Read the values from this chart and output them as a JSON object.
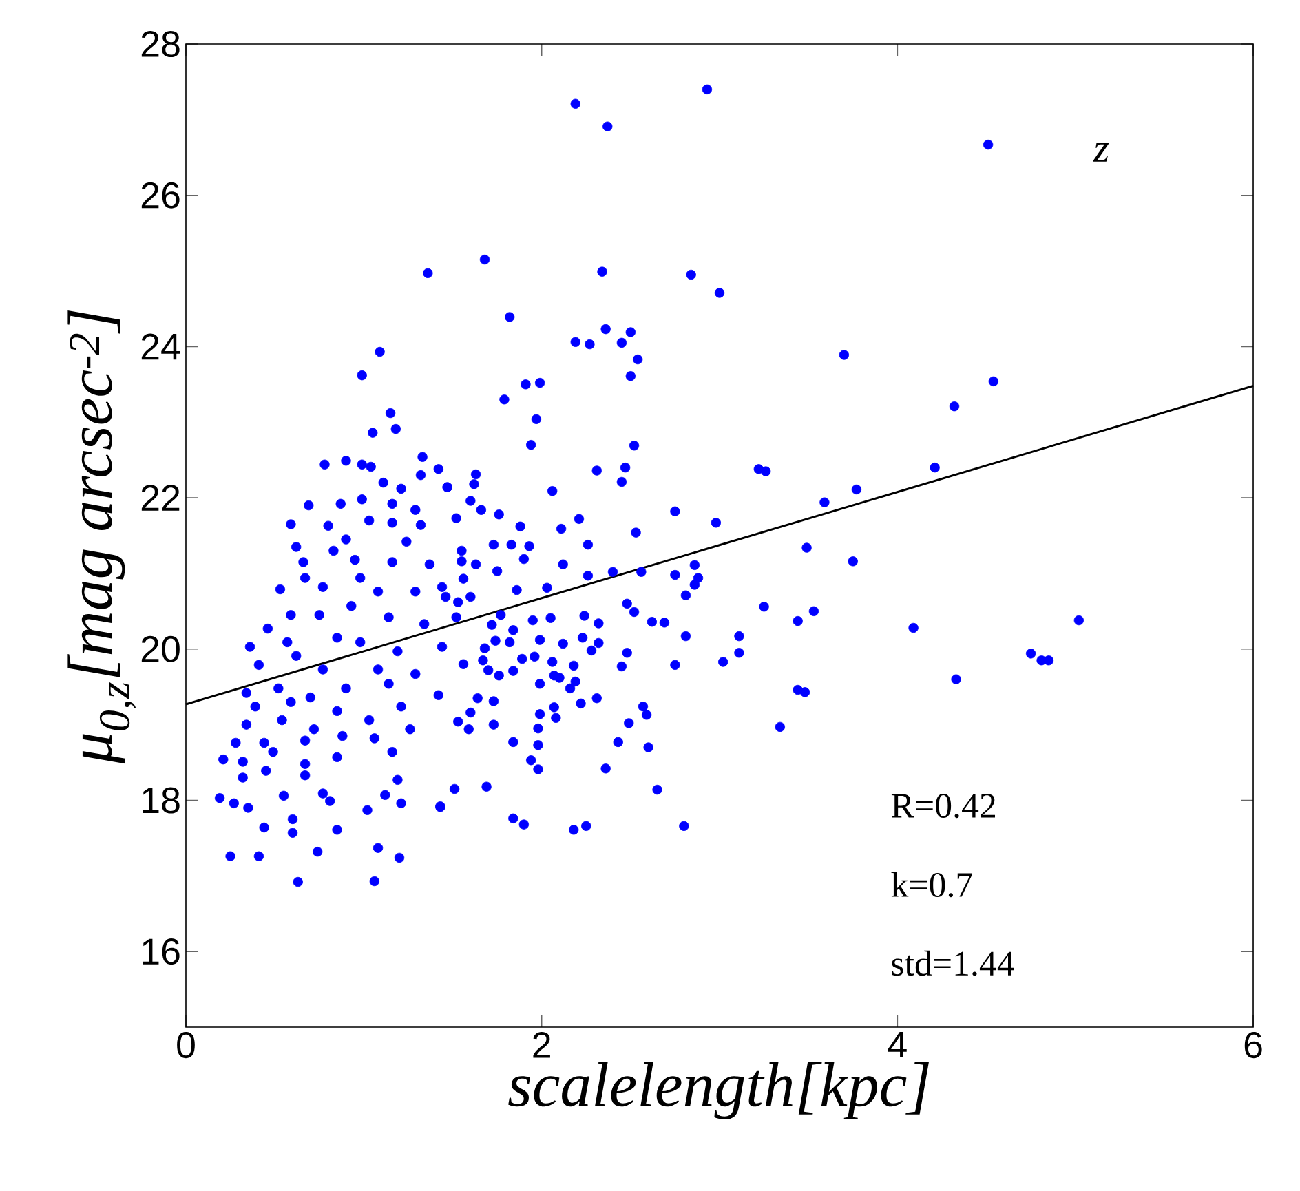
{
  "chart_data": {
    "type": "scatter",
    "xlabel": "scalelength[kpc]",
    "ylabel": "μ$_{0,z}$[mag arcsec$^{-2}$]",
    "xlim": [
      0,
      6
    ],
    "ylim": [
      15,
      28
    ],
    "xticks": [
      0,
      2,
      4,
      6
    ],
    "yticks": [
      16,
      18,
      20,
      22,
      24,
      26,
      28
    ],
    "grid": false,
    "annotations": [
      "z",
      "R=0.42",
      "k=0.7",
      "std=1.44"
    ],
    "series": [
      {
        "color": "#0000ff",
        "marker": "circle",
        "x": [
          2.19,
          2.93,
          2.37,
          4.51,
          1.36,
          1.68,
          2.34,
          2.84,
          3.0,
          1.82,
          1.09,
          0.99,
          2.19,
          2.27,
          2.45,
          2.5,
          2.36,
          2.54,
          2.5,
          3.7,
          4.54,
          4.32,
          1.79,
          1.91,
          1.99,
          1.97,
          1.15,
          1.18,
          1.05,
          1.94,
          2.52,
          3.22,
          3.26,
          4.21,
          2.98,
          3.59,
          3.77,
          3.49,
          3.75,
          2.86,
          2.88,
          2.86,
          3.25,
          3.44,
          3.53,
          4.09,
          5.02,
          3.11,
          3.11,
          3.02,
          4.75,
          4.81,
          4.85,
          4.33,
          3.44,
          3.48,
          3.34,
          2.31,
          2.47,
          2.45,
          2.06,
          2.75,
          2.53,
          2.21,
          2.11,
          2.26,
          1.88,
          1.76,
          1.63,
          1.62,
          1.47,
          1.6,
          1.66,
          1.52,
          1.73,
          1.83,
          1.93,
          1.9,
          2.12,
          2.26,
          2.4,
          2.56,
          2.75,
          2.81,
          1.55,
          1.55,
          1.63,
          1.56,
          1.75,
          1.86,
          2.03,
          1.6,
          1.46,
          1.53,
          1.77,
          1.95,
          2.05,
          2.24,
          2.32,
          2.48,
          2.52,
          2.62,
          2.69,
          2.81,
          1.72,
          1.84,
          1.99,
          1.82,
          1.74,
          2.12,
          2.23,
          2.32,
          1.68,
          1.96,
          1.89,
          2.28,
          2.48,
          1.67,
          1.56,
          2.06,
          2.18,
          2.45,
          2.75,
          1.7,
          1.84,
          1.76,
          2.07,
          2.1,
          1.99,
          2.19,
          2.16,
          2.31,
          2.22,
          1.64,
          1.73,
          2.57,
          2.59,
          2.49,
          2.07,
          1.99,
          2.08,
          1.98,
          1.73,
          1.6,
          1.53,
          1.59,
          1.98,
          1.84,
          2.43,
          2.6,
          1.94,
          1.98,
          2.36,
          1.51,
          1.69,
          2.65,
          1.43,
          1.84,
          1.9,
          2.18,
          2.25,
          2.8,
          0.78,
          0.9,
          0.99,
          1.04,
          1.33,
          1.42,
          1.32,
          1.11,
          1.21,
          1.47,
          0.69,
          0.87,
          0.99,
          1.16,
          1.29,
          0.59,
          0.8,
          0.9,
          1.03,
          1.16,
          1.32,
          0.62,
          0.83,
          0.95,
          1.24,
          0.66,
          1.16,
          1.37,
          0.53,
          0.67,
          0.77,
          0.98,
          1.08,
          1.29,
          1.44,
          0.59,
          0.75,
          0.93,
          1.14,
          1.34,
          1.52,
          0.46,
          0.36,
          0.57,
          0.85,
          0.98,
          1.19,
          1.44,
          0.41,
          0.62,
          0.77,
          1.08,
          1.29,
          0.34,
          0.52,
          0.7,
          0.9,
          1.14,
          1.42,
          0.39,
          0.59,
          0.85,
          1.21,
          0.34,
          0.54,
          0.72,
          1.03,
          1.26,
          0.28,
          0.44,
          0.67,
          0.88,
          1.06,
          0.21,
          0.32,
          0.49,
          0.67,
          0.85,
          1.16,
          0.32,
          0.45,
          0.67,
          0.77,
          1.19,
          0.19,
          0.27,
          0.35,
          0.55,
          0.81,
          1.02,
          1.12,
          1.21,
          1.43,
          0.44,
          0.6,
          0.6,
          0.85,
          0.74,
          1.08,
          0.25,
          0.41,
          1.2,
          0.63,
          1.06
        ],
        "values": [
          27.21,
          27.4,
          26.91,
          26.67,
          24.97,
          25.15,
          24.99,
          24.95,
          24.71,
          24.39,
          23.93,
          23.62,
          24.06,
          24.03,
          24.05,
          24.19,
          24.23,
          23.83,
          23.61,
          23.89,
          23.54,
          23.21,
          23.3,
          23.5,
          23.52,
          23.04,
          23.12,
          22.91,
          22.86,
          22.7,
          22.69,
          22.38,
          22.35,
          22.4,
          21.67,
          21.94,
          22.11,
          21.34,
          21.16,
          21.11,
          20.94,
          20.85,
          20.56,
          20.37,
          20.5,
          20.28,
          20.38,
          20.17,
          19.95,
          19.83,
          19.94,
          19.85,
          19.85,
          19.6,
          19.46,
          19.43,
          18.97,
          22.36,
          22.4,
          22.21,
          22.09,
          21.82,
          21.54,
          21.72,
          21.59,
          21.38,
          21.62,
          21.78,
          22.31,
          22.18,
          22.14,
          21.96,
          21.84,
          21.73,
          21.38,
          21.38,
          21.36,
          21.19,
          21.12,
          20.97,
          21.02,
          21.02,
          20.98,
          20.71,
          21.3,
          21.16,
          21.12,
          20.93,
          21.03,
          20.78,
          20.81,
          20.69,
          20.69,
          20.62,
          20.45,
          20.38,
          20.41,
          20.44,
          20.34,
          20.6,
          20.49,
          20.36,
          20.35,
          20.17,
          20.32,
          20.25,
          20.12,
          20.09,
          20.11,
          20.07,
          20.15,
          20.08,
          20.01,
          19.9,
          19.87,
          19.98,
          19.95,
          19.85,
          19.8,
          19.83,
          19.78,
          19.77,
          19.79,
          19.72,
          19.71,
          19.65,
          19.65,
          19.62,
          19.54,
          19.57,
          19.48,
          19.35,
          19.28,
          19.35,
          19.31,
          19.24,
          19.13,
          19.02,
          19.23,
          19.14,
          19.09,
          18.95,
          19.0,
          19.16,
          19.04,
          18.94,
          18.73,
          18.77,
          18.77,
          18.7,
          18.53,
          18.41,
          18.42,
          18.15,
          18.18,
          18.14,
          17.91,
          17.76,
          17.68,
          17.61,
          17.66,
          17.66,
          22.44,
          22.49,
          22.44,
          22.41,
          22.54,
          22.38,
          22.3,
          22.2,
          22.12,
          22.14,
          21.9,
          21.92,
          21.98,
          21.92,
          21.84,
          21.65,
          21.63,
          21.45,
          21.7,
          21.67,
          21.64,
          21.35,
          21.3,
          21.18,
          21.42,
          21.15,
          21.15,
          21.12,
          20.79,
          20.94,
          20.82,
          20.94,
          20.76,
          20.76,
          20.82,
          20.45,
          20.45,
          20.57,
          20.42,
          20.33,
          20.42,
          20.27,
          20.03,
          20.09,
          20.15,
          20.09,
          19.97,
          20.03,
          19.79,
          19.91,
          19.73,
          19.73,
          19.67,
          19.42,
          19.48,
          19.36,
          19.48,
          19.54,
          19.39,
          19.24,
          19.3,
          19.18,
          19.24,
          19.0,
          19.06,
          18.94,
          19.06,
          18.94,
          18.76,
          18.76,
          18.79,
          18.85,
          18.82,
          18.54,
          18.51,
          18.64,
          18.48,
          18.57,
          18.64,
          18.3,
          18.39,
          18.33,
          18.09,
          18.27,
          18.03,
          17.96,
          17.9,
          18.06,
          17.99,
          17.87,
          18.07,
          17.96,
          17.92,
          17.64,
          17.75,
          17.57,
          17.61,
          17.32,
          17.37,
          17.26,
          17.26,
          17.24,
          16.92,
          16.93
        ]
      },
      {
        "type": "line",
        "color": "#000000",
        "marker": "none",
        "line_style": "solid",
        "x": [
          0,
          6
        ],
        "values": [
          19.27,
          23.48
        ]
      }
    ]
  }
}
